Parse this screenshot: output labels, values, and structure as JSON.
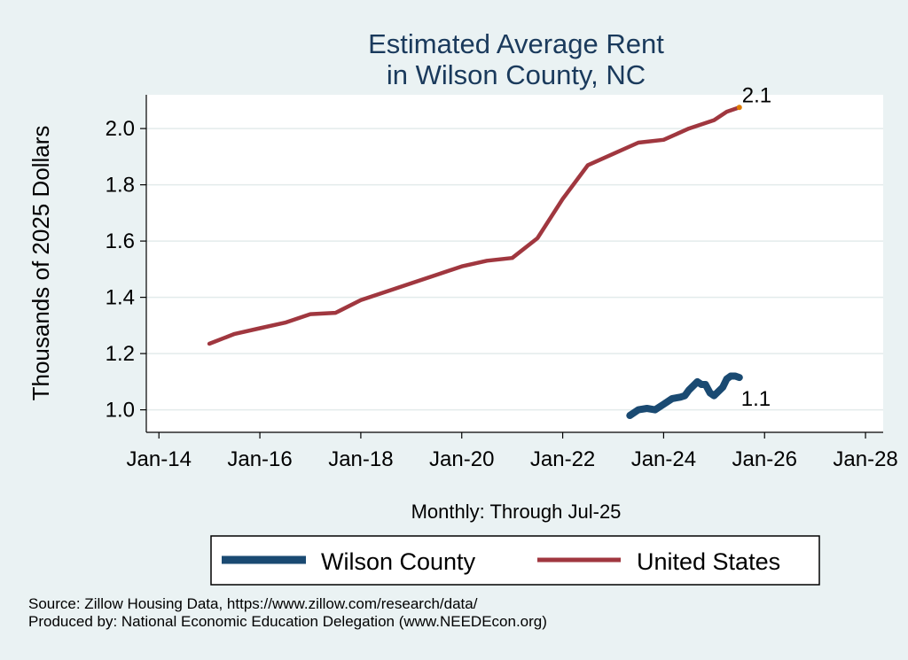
{
  "chart_data": {
    "type": "line",
    "title_lines": [
      "Estimated Average Rent",
      "in Wilson County, NC"
    ],
    "ylabel": "Thousands of 2025 Dollars",
    "xlabel": "Monthly: Through Jul-25",
    "ylim": [
      0.92,
      2.12
    ],
    "yticks": [
      1.0,
      1.2,
      1.4,
      1.6,
      1.8,
      2.0
    ],
    "ytick_labels": [
      "1.0",
      "1.2",
      "1.4",
      "1.6",
      "1.8",
      "2.0"
    ],
    "xlim": [
      2013.75,
      2028.35
    ],
    "xticks": [
      2014,
      2016,
      2018,
      2020,
      2022,
      2024,
      2026,
      2028
    ],
    "xtick_labels": [
      "Jan-14",
      "Jan-16",
      "Jan-18",
      "Jan-20",
      "Jan-22",
      "Jan-24",
      "Jan-26",
      "Jan-28"
    ],
    "grid": true,
    "series": [
      {
        "name": "Wilson County",
        "color": "#1a4a72",
        "end_label": "1.1",
        "points": [
          [
            2023.33,
            0.98
          ],
          [
            2023.5,
            1.0
          ],
          [
            2023.67,
            1.005
          ],
          [
            2023.83,
            1.0
          ],
          [
            2024.0,
            1.02
          ],
          [
            2024.17,
            1.04
          ],
          [
            2024.33,
            1.045
          ],
          [
            2024.42,
            1.05
          ],
          [
            2024.5,
            1.07
          ],
          [
            2024.67,
            1.1
          ],
          [
            2024.75,
            1.09
          ],
          [
            2024.83,
            1.09
          ],
          [
            2024.92,
            1.06
          ],
          [
            2025.0,
            1.05
          ],
          [
            2025.17,
            1.08
          ],
          [
            2025.25,
            1.11
          ],
          [
            2025.33,
            1.12
          ],
          [
            2025.42,
            1.12
          ],
          [
            2025.5,
            1.115
          ]
        ]
      },
      {
        "name": "United States",
        "color": "#a0373f",
        "end_label": "2.1",
        "points": [
          [
            2015.0,
            1.235
          ],
          [
            2015.5,
            1.27
          ],
          [
            2016.0,
            1.29
          ],
          [
            2016.5,
            1.31
          ],
          [
            2017.0,
            1.34
          ],
          [
            2017.5,
            1.345
          ],
          [
            2018.0,
            1.39
          ],
          [
            2018.5,
            1.42
          ],
          [
            2019.0,
            1.45
          ],
          [
            2019.5,
            1.48
          ],
          [
            2020.0,
            1.51
          ],
          [
            2020.5,
            1.53
          ],
          [
            2021.0,
            1.54
          ],
          [
            2021.5,
            1.61
          ],
          [
            2022.0,
            1.75
          ],
          [
            2022.5,
            1.87
          ],
          [
            2023.0,
            1.91
          ],
          [
            2023.5,
            1.95
          ],
          [
            2024.0,
            1.96
          ],
          [
            2024.5,
            2.0
          ],
          [
            2025.0,
            2.03
          ],
          [
            2025.25,
            2.06
          ],
          [
            2025.5,
            2.075
          ]
        ]
      }
    ]
  },
  "footer": {
    "source": "Source: Zillow Housing Data, https://www.zillow.com/research/data/",
    "produced": "Produced by: National Economic Education Delegation (www.NEEDEcon.org)"
  }
}
